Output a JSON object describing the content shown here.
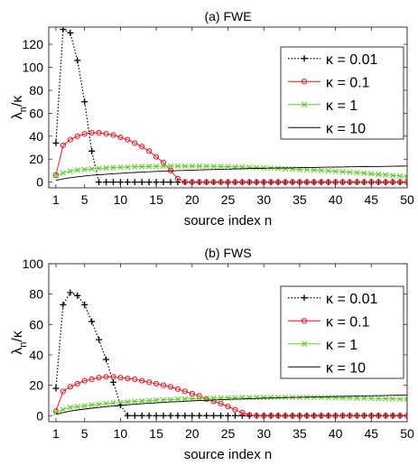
{
  "chart_data": [
    {
      "type": "line",
      "title": "(a) FWE",
      "xlabel": "source index n",
      "ylabel_main": "λ",
      "ylabel_sub": "n",
      "ylabel_rest": "/κ",
      "xlim": [
        0,
        50
      ],
      "ylim": [
        -5,
        135
      ],
      "xticks": [
        1,
        5,
        10,
        15,
        20,
        25,
        30,
        35,
        40,
        45,
        50
      ],
      "yticks": [
        0,
        20,
        40,
        60,
        80,
        100,
        120
      ],
      "grid": false,
      "legend_placement": "top-right",
      "series": [
        {
          "name": "κ = 0.01",
          "color": "#000000",
          "line": "dotted",
          "marker": "plus",
          "x": [
            1,
            2,
            3,
            4,
            5,
            6,
            7,
            8,
            9,
            10,
            11,
            12,
            13,
            14,
            15,
            16,
            17,
            18,
            19,
            20,
            21,
            22,
            23,
            24,
            25,
            26,
            27,
            28,
            29,
            30,
            31,
            32,
            33,
            34,
            35,
            36,
            37,
            38,
            39,
            40,
            41,
            42,
            43,
            44,
            45,
            46,
            47,
            48,
            49,
            50
          ],
          "y": [
            34,
            133,
            130,
            106,
            70,
            27,
            0,
            0,
            0,
            0,
            0,
            0,
            0,
            0,
            0,
            0,
            0,
            0,
            0,
            0,
            0,
            0,
            0,
            0,
            0,
            0,
            0,
            0,
            0,
            0,
            0,
            0,
            0,
            0,
            0,
            0,
            0,
            0,
            0,
            0,
            0,
            0,
            0,
            0,
            0,
            0,
            0,
            0,
            0,
            0
          ]
        },
        {
          "name": "κ = 0.1",
          "color": "#e8121a",
          "line": "solid",
          "marker": "circle",
          "x": [
            1,
            2,
            3,
            4,
            5,
            6,
            7,
            8,
            9,
            10,
            11,
            12,
            13,
            14,
            15,
            16,
            17,
            18,
            19,
            20,
            21,
            22,
            23,
            24,
            25,
            26,
            27,
            28,
            29,
            30,
            31,
            32,
            33,
            34,
            35,
            36,
            37,
            38,
            39,
            40,
            41,
            42,
            43,
            44,
            45,
            46,
            47,
            48,
            49,
            50
          ],
          "y": [
            6,
            32,
            37,
            40,
            42,
            43,
            43,
            42,
            41,
            39,
            37,
            34,
            31,
            27,
            22,
            17,
            10,
            3,
            0,
            0,
            0,
            0,
            0,
            0,
            0,
            0,
            0,
            0,
            0,
            0,
            0,
            0,
            0,
            0,
            0,
            0,
            0,
            0,
            0,
            0,
            0,
            0,
            0,
            0,
            0,
            0,
            0,
            0,
            0,
            0
          ]
        },
        {
          "name": "κ = 1",
          "color": "#63c930",
          "line": "solid",
          "marker": "x",
          "x": [
            1,
            2,
            3,
            4,
            5,
            6,
            7,
            8,
            9,
            10,
            11,
            12,
            13,
            14,
            15,
            16,
            17,
            18,
            19,
            20,
            21,
            22,
            23,
            24,
            25,
            26,
            27,
            28,
            29,
            30,
            31,
            32,
            33,
            34,
            35,
            36,
            37,
            38,
            39,
            40,
            41,
            42,
            43,
            44,
            45,
            46,
            47,
            48,
            49,
            50
          ],
          "y": [
            6,
            8,
            9.5,
            10.5,
            11,
            11.5,
            12,
            12.3,
            12.6,
            12.9,
            13.1,
            13.3,
            13.5,
            13.6,
            13.7,
            13.8,
            13.9,
            13.9,
            13.9,
            13.9,
            13.9,
            13.8,
            13.7,
            13.6,
            13.5,
            13.3,
            13.1,
            12.9,
            12.7,
            12.5,
            12.3,
            12,
            11.7,
            11.4,
            11.1,
            10.8,
            10.5,
            10.2,
            9.8,
            9.4,
            9,
            8.6,
            8.2,
            7.8,
            7.3,
            6.8,
            6.3,
            5.8,
            5.3,
            4.8
          ]
        },
        {
          "name": "κ = 10",
          "color": "#000000",
          "line": "solid",
          "marker": "none",
          "x": [
            1,
            2,
            3,
            4,
            5,
            6,
            7,
            8,
            9,
            10,
            11,
            12,
            13,
            14,
            15,
            16,
            17,
            18,
            19,
            20,
            21,
            22,
            23,
            24,
            25,
            26,
            27,
            28,
            29,
            30,
            31,
            32,
            33,
            34,
            35,
            36,
            37,
            38,
            39,
            40,
            41,
            42,
            43,
            44,
            45,
            46,
            47,
            48,
            49,
            50
          ],
          "y": [
            1.5,
            2.8,
            3.8,
            4.6,
            5.3,
            5.9,
            6.4,
            6.9,
            7.3,
            7.7,
            8.1,
            8.4,
            8.7,
            9,
            9.3,
            9.6,
            9.8,
            10,
            10.2,
            10.4,
            10.6,
            10.8,
            11,
            11.2,
            11.3,
            11.5,
            11.6,
            11.8,
            11.9,
            12,
            12.2,
            12.3,
            12.4,
            12.5,
            12.6,
            12.7,
            12.8,
            12.9,
            13,
            13.1,
            13.2,
            13.3,
            13.4,
            13.5,
            13.6,
            13.6,
            13.7,
            13.8,
            13.9,
            14
          ]
        }
      ]
    },
    {
      "type": "line",
      "title": "(b) FWS",
      "xlabel": "source index n",
      "ylabel_main": "λ",
      "ylabel_sub": "n",
      "ylabel_rest": "/κ",
      "xlim": [
        0,
        50
      ],
      "ylim": [
        -4,
        100
      ],
      "xticks": [
        1,
        5,
        10,
        15,
        20,
        25,
        30,
        35,
        40,
        45,
        50
      ],
      "yticks": [
        0,
        20,
        40,
        60,
        80,
        100
      ],
      "grid": false,
      "legend_placement": "top-right",
      "series": [
        {
          "name": "κ = 0.01",
          "color": "#000000",
          "line": "dotted",
          "marker": "plus",
          "x": [
            1,
            2,
            3,
            4,
            5,
            6,
            7,
            8,
            9,
            10,
            11,
            12,
            13,
            14,
            15,
            16,
            17,
            18,
            19,
            20,
            21,
            22,
            23,
            24,
            25,
            26,
            27,
            28,
            29,
            30,
            31,
            32,
            33,
            34,
            35,
            36,
            37,
            38,
            39,
            40,
            41,
            42,
            43,
            44,
            45,
            46,
            47,
            48,
            49,
            50
          ],
          "y": [
            18,
            73,
            81,
            79,
            73,
            62,
            50,
            37,
            22,
            7,
            0,
            0,
            0,
            0,
            0,
            0,
            0,
            0,
            0,
            0,
            0,
            0,
            0,
            0,
            0,
            0,
            0,
            0,
            0,
            0,
            0,
            0,
            0,
            0,
            0,
            0,
            0,
            0,
            0,
            0,
            0,
            0,
            0,
            0,
            0,
            0,
            0,
            0,
            0,
            0
          ]
        },
        {
          "name": "κ = 0.1",
          "color": "#e8121a",
          "line": "solid",
          "marker": "circle",
          "x": [
            1,
            2,
            3,
            4,
            5,
            6,
            7,
            8,
            9,
            10,
            11,
            12,
            13,
            14,
            15,
            16,
            17,
            18,
            19,
            20,
            21,
            22,
            23,
            24,
            25,
            26,
            27,
            28,
            29,
            30,
            31,
            32,
            33,
            34,
            35,
            36,
            37,
            38,
            39,
            40,
            41,
            42,
            43,
            44,
            45,
            46,
            47,
            48,
            49,
            50
          ],
          "y": [
            3,
            16,
            19,
            21,
            23,
            24,
            25,
            25.5,
            25.5,
            25,
            24.5,
            24,
            23,
            22,
            21,
            20,
            19,
            17.5,
            16,
            14.5,
            13,
            11,
            9.5,
            8,
            6,
            4,
            2,
            0.5,
            0,
            0,
            0,
            0,
            0,
            0,
            0,
            0,
            0,
            0,
            0,
            0,
            0,
            0,
            0,
            0,
            0,
            0,
            0,
            0,
            0,
            0
          ]
        },
        {
          "name": "κ = 1",
          "color": "#63c930",
          "line": "solid",
          "marker": "x",
          "x": [
            1,
            2,
            3,
            4,
            5,
            6,
            7,
            8,
            9,
            10,
            11,
            12,
            13,
            14,
            15,
            16,
            17,
            18,
            19,
            20,
            21,
            22,
            23,
            24,
            25,
            26,
            27,
            28,
            29,
            30,
            31,
            32,
            33,
            34,
            35,
            36,
            37,
            38,
            39,
            40,
            41,
            42,
            43,
            44,
            45,
            46,
            47,
            48,
            49,
            50
          ],
          "y": [
            2,
            4,
            5.5,
            6,
            6.5,
            7,
            7.5,
            8,
            8.3,
            8.6,
            9,
            9.3,
            9.6,
            9.9,
            10.2,
            10.4,
            10.6,
            10.8,
            11,
            11.2,
            11.3,
            11.4,
            11.5,
            11.6,
            11.7,
            11.8,
            11.9,
            11.9,
            12,
            12,
            12,
            12.1,
            12.1,
            12.1,
            12.1,
            12.1,
            12,
            12,
            11.9,
            11.9,
            11.8,
            11.7,
            11.6,
            11.5,
            11.4,
            11.3,
            11.2,
            11.1,
            11,
            10.9
          ]
        },
        {
          "name": "κ = 10",
          "color": "#000000",
          "line": "solid",
          "marker": "none",
          "x": [
            1,
            2,
            3,
            4,
            5,
            6,
            7,
            8,
            9,
            10,
            11,
            12,
            13,
            14,
            15,
            16,
            17,
            18,
            19,
            20,
            21,
            22,
            23,
            24,
            25,
            26,
            27,
            28,
            29,
            30,
            31,
            32,
            33,
            34,
            35,
            36,
            37,
            38,
            39,
            40,
            41,
            42,
            43,
            44,
            45,
            46,
            47,
            48,
            49,
            50
          ],
          "y": [
            1,
            2,
            3,
            3.7,
            4.3,
            4.9,
            5.4,
            5.9,
            6.3,
            6.7,
            7.1,
            7.5,
            7.8,
            8.1,
            8.4,
            8.7,
            9,
            9.2,
            9.5,
            9.7,
            9.9,
            10.1,
            10.3,
            10.5,
            10.7,
            10.9,
            11,
            11.2,
            11.3,
            11.5,
            11.6,
            11.7,
            11.9,
            12,
            12.1,
            12.2,
            12.3,
            12.4,
            12.5,
            12.6,
            12.7,
            12.8,
            12.9,
            13,
            13.1,
            13.2,
            13.3,
            13.4,
            13.5,
            13.6
          ]
        }
      ]
    }
  ]
}
